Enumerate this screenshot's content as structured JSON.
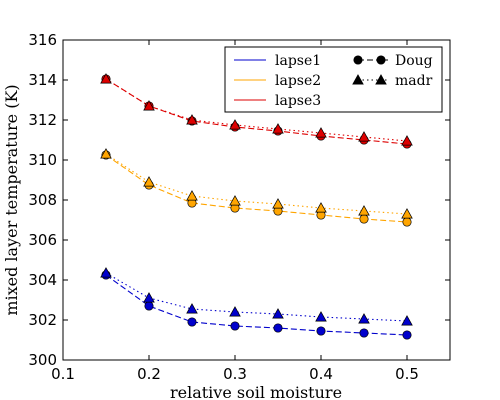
{
  "chart_data": {
    "type": "line",
    "title": "",
    "xlabel": "relative soil moisture",
    "ylabel": "mixed layer temperature (K)",
    "xlim": [
      0.1,
      0.55
    ],
    "ylim": [
      300,
      316
    ],
    "xticks": [
      0.1,
      0.2,
      0.3,
      0.4,
      0.5
    ],
    "yticks": [
      300,
      302,
      304,
      306,
      308,
      310,
      312,
      314,
      316
    ],
    "xtick_labels": [
      "0.1",
      "0.2",
      "0.3",
      "0.4",
      "0.5"
    ],
    "ytick_labels": [
      "300",
      "302",
      "304",
      "306",
      "308",
      "310",
      "312",
      "314",
      "316"
    ],
    "grid": false,
    "legend_position": "top-right",
    "x": [
      0.15,
      0.2,
      0.25,
      0.3,
      0.35,
      0.4,
      0.45,
      0.5
    ],
    "series": [
      {
        "name": "lapse1",
        "color": "#0000cc",
        "style": "Doug",
        "marker": "circle",
        "values": [
          304.25,
          302.7,
          301.9,
          301.7,
          301.6,
          301.45,
          301.35,
          301.25
        ]
      },
      {
        "name": "lapse1",
        "color": "#0000cc",
        "style": "madr",
        "marker": "triangle",
        "values": [
          304.35,
          303.1,
          302.55,
          302.4,
          302.3,
          302.15,
          302.05,
          301.95
        ]
      },
      {
        "name": "lapse2",
        "color": "#ffa500",
        "style": "Doug",
        "marker": "circle",
        "values": [
          310.25,
          308.75,
          307.85,
          307.6,
          307.45,
          307.25,
          307.05,
          306.9
        ]
      },
      {
        "name": "lapse2",
        "color": "#ffa500",
        "style": "madr",
        "marker": "triangle",
        "values": [
          310.3,
          308.9,
          308.2,
          307.95,
          307.8,
          307.6,
          307.45,
          307.3
        ]
      },
      {
        "name": "lapse3",
        "color": "#dd0000",
        "style": "Doug",
        "marker": "circle",
        "values": [
          314.05,
          312.7,
          311.95,
          311.65,
          311.45,
          311.2,
          311.0,
          310.8
        ]
      },
      {
        "name": "lapse3",
        "color": "#dd0000",
        "style": "madr",
        "marker": "triangle",
        "values": [
          314.05,
          312.7,
          312.0,
          311.75,
          311.55,
          311.35,
          311.15,
          310.95
        ]
      }
    ],
    "legend": {
      "colors": [
        {
          "label": "lapse1",
          "color": "#0000cc"
        },
        {
          "label": "lapse2",
          "color": "#ffa500"
        },
        {
          "label": "lapse3",
          "color": "#dd0000"
        }
      ],
      "styles": [
        {
          "label": "Doug",
          "marker": "circle"
        },
        {
          "label": "madr",
          "marker": "triangle"
        }
      ]
    }
  }
}
